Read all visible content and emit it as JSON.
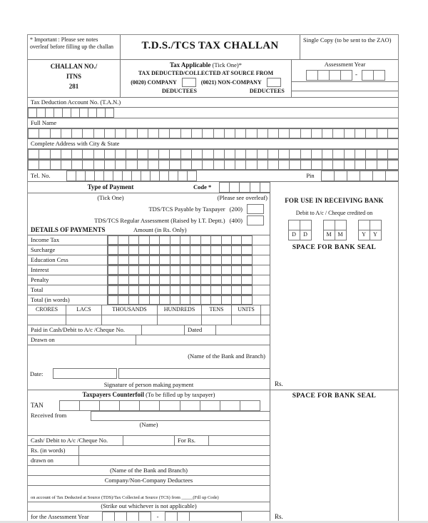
{
  "colors": {
    "border": "#777777",
    "text": "#141414",
    "background": "#ffffff"
  },
  "header": {
    "important_note": "* Important : Please see notes overleaf before filling up the challan",
    "title": "T.D.S./TCS TAX CHALLAN",
    "single_copy": "Single Copy (to be sent to the ZAO)"
  },
  "challan": {
    "line1": "CHALLAN NO./",
    "line2": "ITNS",
    "line3": "281"
  },
  "tax_applicable": {
    "label_bold": "Tax Applicable",
    "label_rest": " (Tick One)*",
    "line2": "TAX DEDUCTED/COLLECTED AT SOURCE FROM",
    "company_code": "(0020) COMPANY",
    "company_label2": "DEDUCTEES",
    "non_company_code": "(0021) NON-COMPANY",
    "non_company_label2": "DEDUCTEES"
  },
  "assessment_year": {
    "label": "Assessment Year",
    "separator": "-"
  },
  "tan": {
    "label": "Tax Deduction Account No. (T.A.N.)"
  },
  "full_name": {
    "label": "Full Name"
  },
  "address": {
    "label": "Complete Address with City & State"
  },
  "tel": {
    "label": "Tel. No.",
    "pin_label": "Pin"
  },
  "payment": {
    "type_label": "Type of Payment",
    "code_label": "Code *",
    "tick_one": "(Tick One)",
    "see_overleaf": "(Please see overleaf)",
    "row200": "TDS/TCS Payable by Taxpayer",
    "code200": "(200)",
    "row400": "TDS/TCS Regular Assessment (Raised by I.T. Deptt.)",
    "code400": "(400)",
    "details_label": "DETAILS OF PAYMENTS",
    "amount_label": "Amount (in Rs. Only)",
    "rows": [
      "Income Tax",
      "Surcharge",
      "Education Cess",
      "Interest",
      "Penalty",
      "Total",
      "Total (in words)"
    ]
  },
  "words_table": {
    "columns": [
      "CRORES",
      "LACS",
      "THOUSANDS",
      "HUNDREDS",
      "TENS",
      "UNITS"
    ]
  },
  "paid": {
    "paid_label": "Paid in Cash/Debit to  A/c /Cheque No.",
    "dated_label": "Dated",
    "drawn_label": "Drawn on",
    "bank_branch": "(Name of the Bank and Branch)",
    "date_label": "Date:",
    "signature": "Signature of person making payment",
    "rs": "Rs."
  },
  "bank_panel": {
    "for_use": "FOR USE IN RECEIVING BANK",
    "debit_line": "Debit to A/c / Cheque credited on",
    "dd": [
      "D",
      "D"
    ],
    "mm": [
      "M",
      "M"
    ],
    "yy": [
      "Y",
      "Y"
    ],
    "space_seal": "SPACE FOR BANK SEAL"
  },
  "counterfoil": {
    "title_bold": "Taxpayers Counterfoil",
    "title_rest": " (To be filled up by taxpayer)",
    "tan_label": "TAN",
    "received_label": "Received from",
    "name_label": "(Name)",
    "cash_label": "Cash/ Debit to A/c /Cheque No.",
    "for_rs": "For Rs.",
    "rs_words": "Rs. (in words)",
    "drawn_on": "drawn on",
    "bank_branch": "(Name of the Bank and Branch)",
    "deductees": "Company/Non-Company Deductees",
    "on_account": "on account of Tax Deducted at Source (TDS)/Tax Collected at Source (TCS) from _____(Fill up Code)",
    "strike_out": "(Strike out whichever is not applicable)",
    "ay_label": "for the Assessment Year",
    "separator": "-",
    "space_seal": "SPACE FOR BANK SEAL",
    "rs": "Rs."
  }
}
